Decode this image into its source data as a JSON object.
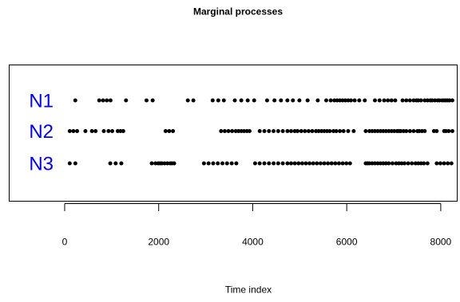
{
  "chart_data": {
    "type": "scatter",
    "title": "Marginal processes",
    "xlabel": "Time index",
    "ylabel": "",
    "xlim": [
      -1180,
      8350
    ],
    "x_ticks": [
      0,
      2000,
      4000,
      6000,
      8000
    ],
    "x_tick_labels": [
      "0",
      "2000",
      "4000",
      "6000",
      "8000"
    ],
    "grid": false,
    "point_color": "#000000",
    "label_color": "#0000ff",
    "series": [
      {
        "name": "N1",
        "x": [
          226,
          735,
          817,
          896,
          976,
          1305,
          1742,
          1872,
          2620,
          2738,
          3148,
          3268,
          3386,
          3619,
          3757,
          3894,
          4031,
          4306,
          4463,
          4601,
          4738,
          4855,
          4993,
          5168,
          5384,
          5564,
          5659,
          5737,
          5796,
          5855,
          5914,
          5972,
          6031,
          6090,
          6169,
          6266,
          6384,
          6600,
          6698,
          6796,
          6875,
          6953,
          7032,
          7188,
          7267,
          7345,
          7424,
          7482,
          7522,
          7580,
          7659,
          7718,
          7777,
          7816,
          7875,
          7933,
          7974,
          8031,
          8071,
          8110,
          8150,
          8188,
          8247
        ]
      },
      {
        "name": "N2",
        "x": [
          108,
          186,
          265,
          441,
          580,
          658,
          833,
          933,
          1012,
          1129,
          1186,
          1246,
          2147,
          2224,
          2304,
          3327,
          3406,
          3484,
          3562,
          3640,
          3699,
          3758,
          3816,
          3875,
          3933,
          4149,
          4248,
          4346,
          4444,
          4542,
          4640,
          4739,
          4817,
          4895,
          4954,
          5033,
          5110,
          5189,
          5267,
          5346,
          5404,
          5463,
          5522,
          5580,
          5638,
          5717,
          5777,
          5855,
          5933,
          6031,
          6148,
          6404,
          6483,
          6541,
          6600,
          6659,
          6718,
          6776,
          6835,
          6894,
          6953,
          7012,
          7070,
          7110,
          7149,
          7208,
          7267,
          7345,
          7424,
          7503,
          7542,
          7600,
          7659,
          7855,
          7914,
          8071,
          8110,
          8168,
          8247
        ]
      },
      {
        "name": "N3",
        "x": [
          108,
          227,
          970,
          1085,
          1205,
          1852,
          1930,
          1991,
          2030,
          2068,
          2125,
          2185,
          2246,
          2283,
          2329,
          2963,
          3061,
          3160,
          3258,
          3356,
          3454,
          3553,
          3651,
          4051,
          4148,
          4248,
          4346,
          4444,
          4542,
          4640,
          4739,
          4817,
          4895,
          4974,
          5053,
          5131,
          5208,
          5287,
          5365,
          5444,
          5522,
          5600,
          5678,
          5757,
          5835,
          5914,
          5992,
          6070,
          6404,
          6444,
          6483,
          6541,
          6600,
          6659,
          6718,
          6776,
          6835,
          6894,
          6973,
          7051,
          7110,
          7169,
          7228,
          7306,
          7385,
          7464,
          7522,
          7580,
          7639,
          7718,
          7914,
          7992,
          8071,
          8150,
          8228
        ]
      }
    ]
  }
}
